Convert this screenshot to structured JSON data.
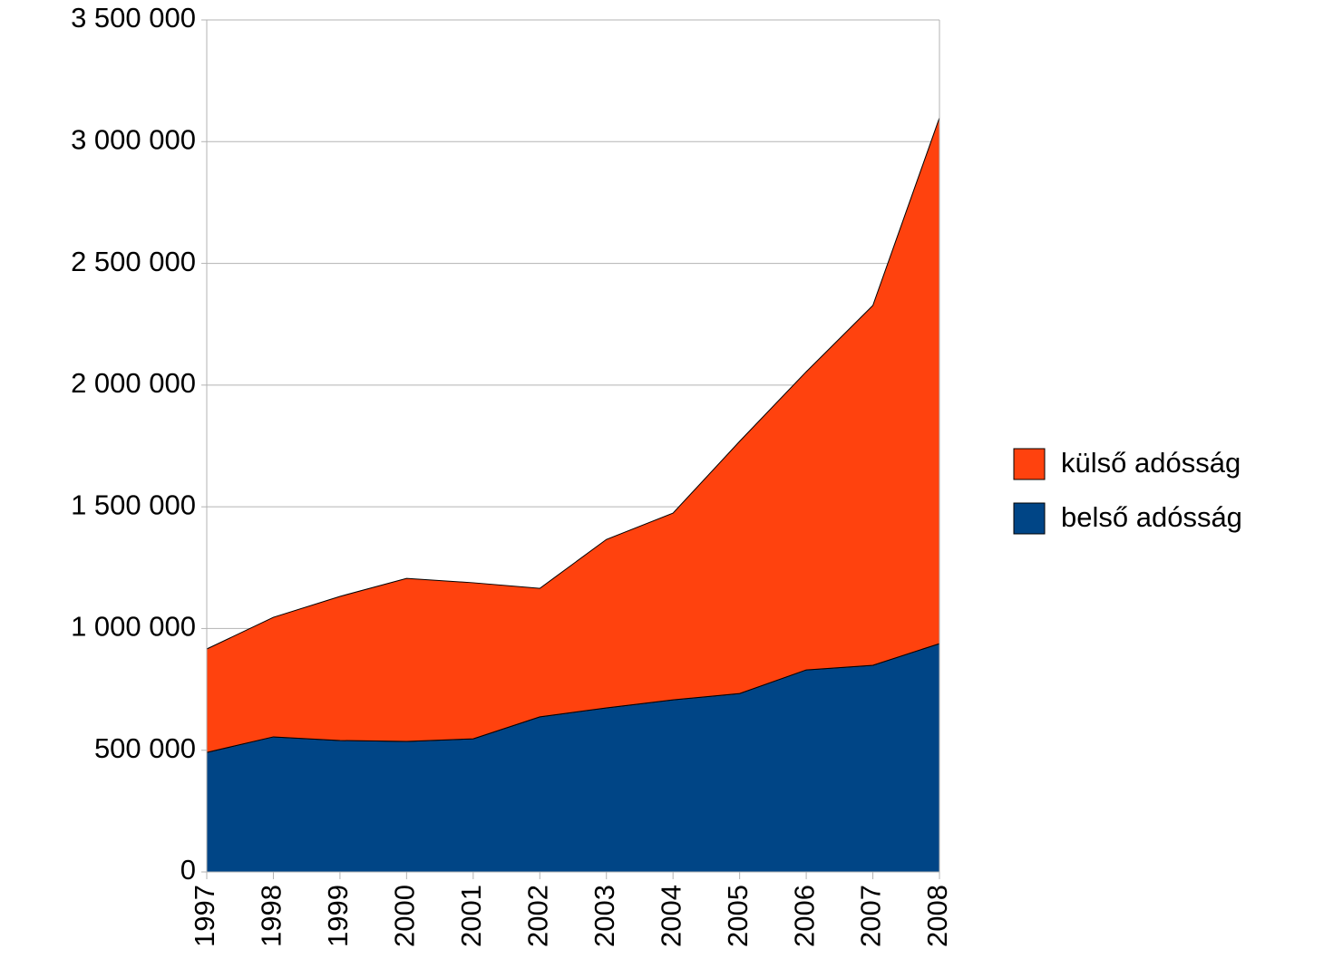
{
  "chart_data": {
    "type": "stacked_area",
    "categories": [
      "1997",
      "1998",
      "1999",
      "2000",
      "2001",
      "2002",
      "2003",
      "2004",
      "2005",
      "2006",
      "2007",
      "2008"
    ],
    "series": [
      {
        "name": "belső adósság",
        "color": "#004586",
        "values": [
          491000,
          555000,
          540000,
          536000,
          547000,
          637000,
          674000,
          707000,
          733000,
          830000,
          849000,
          938000
        ]
      },
      {
        "name": "külső adósság",
        "color": "#ff420e",
        "values": [
          425000,
          491000,
          592000,
          670000,
          641000,
          528000,
          692000,
          767000,
          1036000,
          1225000,
          1478000,
          2160000
        ]
      }
    ],
    "ylim": [
      0,
      3500000
    ],
    "yticks": [
      0,
      {
        "value": 500000,
        "label": "500 000"
      },
      {
        "value": 1000000,
        "label": "1 000 000"
      },
      {
        "value": 1500000,
        "label": "1 500 000"
      },
      {
        "value": 2000000,
        "label": "2 000 000"
      },
      {
        "value": 2500000,
        "label": "2 500 000"
      },
      {
        "value": 3000000,
        "label": "3 000 000"
      },
      {
        "value": 3500000,
        "label": "3 500 000"
      }
    ],
    "grid": true,
    "legend": "right"
  }
}
